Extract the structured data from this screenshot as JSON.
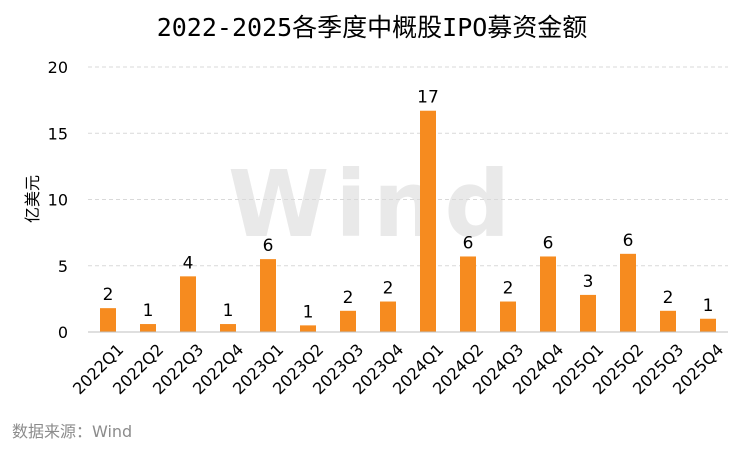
{
  "chart_data": {
    "type": "bar",
    "title": "2022-2025各季度中概股IPO募资金额",
    "ylabel": "亿美元",
    "xlabel": "",
    "ylim": [
      0,
      20
    ],
    "yticks": [
      0,
      5,
      10,
      15,
      20
    ],
    "grid": true,
    "legend": "none",
    "bar_color": "#f68b1f",
    "categories": [
      "2022Q1",
      "2022Q2",
      "2022Q3",
      "2022Q4",
      "2023Q1",
      "2023Q2",
      "2023Q3",
      "2023Q4",
      "2024Q1",
      "2024Q2",
      "2024Q3",
      "2024Q4",
      "2025Q1",
      "2025Q2",
      "2025Q3",
      "2025Q4"
    ],
    "values": [
      1.8,
      0.6,
      4.2,
      0.6,
      5.5,
      0.5,
      1.6,
      2.3,
      16.7,
      5.7,
      2.3,
      5.7,
      2.8,
      5.9,
      1.6,
      1.0
    ],
    "data_labels": [
      "2",
      "1",
      "4",
      "1",
      "6",
      "1",
      "2",
      "2",
      "17",
      "6",
      "2",
      "6",
      "3",
      "6",
      "2",
      "1"
    ]
  },
  "watermark": "Wind",
  "source": "数据来源：Wind"
}
